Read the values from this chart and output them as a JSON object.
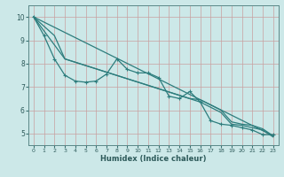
{
  "xlabel": "Humidex (Indice chaleur)",
  "xlim": [
    -0.5,
    23.5
  ],
  "ylim": [
    4.5,
    10.5
  ],
  "xticks": [
    0,
    1,
    2,
    3,
    4,
    5,
    6,
    7,
    8,
    9,
    10,
    11,
    12,
    13,
    14,
    15,
    16,
    17,
    18,
    19,
    20,
    21,
    22,
    23
  ],
  "yticks": [
    5,
    6,
    7,
    8,
    9,
    10
  ],
  "bg_color": "#cce8e8",
  "grid_color": "#aacece",
  "line_color": "#2d7d7d",
  "lines": [
    {
      "x": [
        0,
        1,
        2,
        3,
        4,
        5,
        6,
        7,
        8,
        9,
        10,
        11,
        12,
        13,
        14,
        15,
        16,
        17,
        18,
        19,
        20,
        21,
        22,
        23
      ],
      "y": [
        10.0,
        9.2,
        8.2,
        7.5,
        7.25,
        7.2,
        7.25,
        7.55,
        8.2,
        7.75,
        7.6,
        7.6,
        7.4,
        6.6,
        6.5,
        6.8,
        6.35,
        5.55,
        5.4,
        5.35,
        5.25,
        5.15,
        4.95,
        4.95
      ],
      "marker": true,
      "lw": 0.9
    },
    {
      "x": [
        0,
        23
      ],
      "y": [
        10.0,
        4.9
      ],
      "marker": false,
      "lw": 0.9
    },
    {
      "x": [
        0,
        2,
        3,
        15,
        16,
        18,
        19,
        20,
        21,
        22,
        23
      ],
      "y": [
        10.0,
        9.2,
        8.2,
        6.5,
        6.45,
        6.0,
        5.5,
        5.4,
        5.35,
        5.2,
        4.9
      ],
      "marker": false,
      "lw": 0.9
    },
    {
      "x": [
        0,
        3,
        16,
        18,
        19,
        20,
        21,
        22,
        23
      ],
      "y": [
        10.0,
        8.2,
        6.35,
        5.9,
        5.4,
        5.35,
        5.25,
        5.15,
        4.85
      ],
      "marker": false,
      "lw": 0.9
    }
  ]
}
